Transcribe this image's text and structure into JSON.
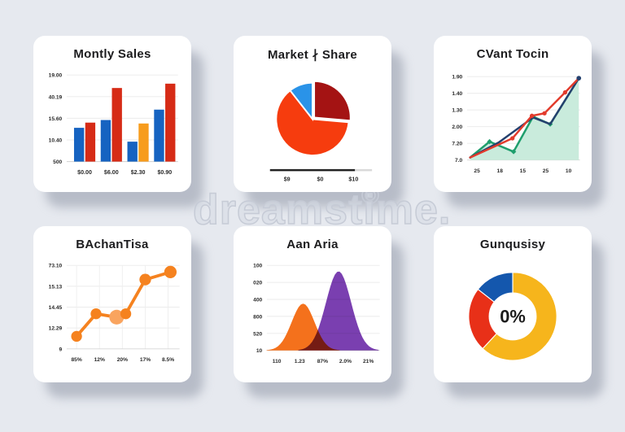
{
  "watermark": {
    "text": "dreamstime.",
    "logo": "spiral-icon"
  },
  "colors": {
    "background": "#e6e9ef",
    "card": "#ffffff",
    "shadow": "rgba(151,158,173,0.6)",
    "title_text": "#1c1c1e",
    "watermark_outline": "#c6cbd6",
    "grid_line": "#ebebeb"
  },
  "cards": [
    {
      "title": "Montly Sales"
    },
    {
      "title": "Market ∤ Share"
    },
    {
      "title": "CVant Tocin"
    },
    {
      "title": "BAchanTisa"
    },
    {
      "title": "Aan Aria"
    },
    {
      "title": "Gunqusisy"
    }
  ],
  "chart_data": [
    {
      "type": "bar",
      "title": "Montly Sales",
      "categories": [
        "$0.00",
        "$6.00",
        "$2.30",
        "$0.90"
      ],
      "y_ticks": [
        "19.00",
        "40.19",
        "15.60",
        "10.40",
        "500"
      ],
      "groups": [
        {
          "bars": [
            {
              "value": 0.39,
              "color": "#1663c1"
            },
            {
              "value": 0.45,
              "color": "#d62b16"
            }
          ]
        },
        {
          "bars": [
            {
              "value": 0.48,
              "color": "#1663c1"
            },
            {
              "value": 0.85,
              "color": "#d62b16"
            }
          ]
        },
        {
          "bars": [
            {
              "value": 0.23,
              "color": "#1663c1"
            },
            {
              "value": 0.44,
              "color": "#f79c1d"
            }
          ]
        },
        {
          "bars": [
            {
              "value": 0.6,
              "color": "#1663c1"
            },
            {
              "value": 0.9,
              "color": "#d62b16"
            }
          ]
        }
      ]
    },
    {
      "type": "pie",
      "title": "Market ∤ Share",
      "x_ticks": [
        "$9",
        "$0",
        "$10"
      ],
      "slices": [
        {
          "label": "dark-red",
          "angle": 95,
          "color": "#a41313",
          "explode": true
        },
        {
          "label": "orange-red",
          "angle": 227,
          "color": "#f63c0e",
          "explode": false
        },
        {
          "label": "blue",
          "angle": 38,
          "color": "#2a93e8",
          "explode": false
        }
      ]
    },
    {
      "type": "line",
      "title": "CVant Tocin",
      "y_ticks": [
        "1.90",
        "1.40",
        "1.30",
        "2.00",
        "7.20",
        "7.0"
      ],
      "x_ticks": [
        "25",
        "18",
        "15",
        "25",
        "10"
      ],
      "series": [
        {
          "name": "teal-area",
          "color": "#1f9e6d",
          "fill": "#c9ebdc",
          "marker": "diamond",
          "points": [
            [
              4,
              3
            ],
            [
              21,
              22
            ],
            [
              42,
              10
            ],
            [
              59,
              52
            ],
            [
              74,
              43
            ],
            [
              99,
              98
            ]
          ]
        },
        {
          "name": "navy-line",
          "color": "#24406e",
          "fill": "",
          "marker": "none",
          "points": [
            [
              4,
              3
            ],
            [
              29,
              21
            ],
            [
              59,
              51
            ],
            [
              74,
              43
            ],
            [
              99,
              98
            ]
          ]
        },
        {
          "name": "red-line",
          "color": "#e23b2c",
          "fill": "",
          "marker": "circle",
          "points": [
            [
              4,
              3
            ],
            [
              41,
              26
            ],
            [
              58,
              53
            ],
            [
              69,
              56
            ],
            [
              87,
              81
            ],
            [
              99,
              98
            ]
          ]
        }
      ]
    },
    {
      "type": "dot-line",
      "title": "BAchanTisa",
      "y_ticks": [
        "73.10",
        "15.13",
        "14.45",
        "12.29",
        "9"
      ],
      "x_ticks": [
        "85%",
        "12%",
        "20%",
        "17%",
        "8.5%"
      ],
      "line_color": "#f5821f",
      "points": [
        {
          "x": 10,
          "y": 15,
          "r": 7,
          "color": "#f5821f"
        },
        {
          "x": 27,
          "y": 42,
          "r": 7,
          "color": "#f5821f"
        },
        {
          "x": 45,
          "y": 38,
          "r": 9.5,
          "color": "#f9a45f"
        },
        {
          "x": 53,
          "y": 42,
          "r": 7,
          "color": "#f5821f"
        },
        {
          "x": 70,
          "y": 83,
          "r": 7.5,
          "color": "#f5821f"
        },
        {
          "x": 92,
          "y": 92,
          "r": 8,
          "color": "#f5821f"
        }
      ]
    },
    {
      "type": "hills",
      "title": "Aan Aria",
      "y_ticks": [
        "100",
        "020",
        "400",
        "800",
        "520",
        "10"
      ],
      "x_ticks": [
        "110",
        "1.23",
        "87%",
        "2.0%",
        "21%"
      ],
      "hills": [
        {
          "center": 33,
          "sigma": 10,
          "height": 55,
          "color": "#f4711c"
        },
        {
          "center": 64,
          "sigma": 11,
          "height": 93,
          "color": "#7a3fb0"
        }
      ]
    },
    {
      "type": "donut",
      "title": "Gunqusisy",
      "center_label": "0%",
      "slices": [
        {
          "label": "yellow",
          "angle": 223,
          "color": "#f6b51c"
        },
        {
          "label": "red",
          "angle": 85,
          "color": "#e83018"
        },
        {
          "label": "blue",
          "angle": 52,
          "color": "#1457ad"
        }
      ]
    }
  ]
}
